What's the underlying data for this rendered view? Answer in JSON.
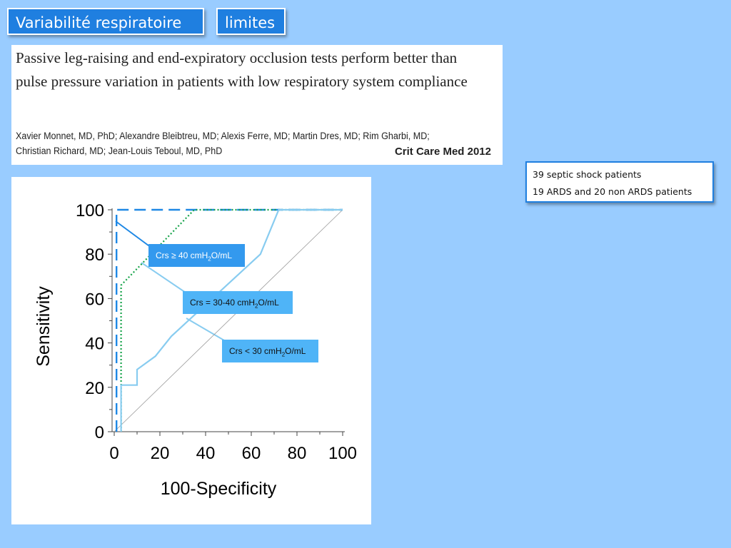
{
  "tabs": {
    "tab1": "Variabilité respiratoire",
    "tab2": "limites"
  },
  "paper": {
    "title": "Passive leg-raising and end-expiratory occlusion tests perform better than pulse pressure variation in patients with low respiratory system compliance",
    "authors": "Xavier Monnet, MD, PhD; Alexandre Bleibtreu, MD; Alexis Ferre, MD; Martin Dres, MD; Rim Gharbi, MD; Christian Richard, MD; Jean-Louis Teboul, MD, PhD",
    "journal": "Crit Care Med 2012"
  },
  "info": {
    "line1": "39 septic shock patients",
    "line2": "19 ARDS and 20 non ARDS patients"
  },
  "labels": {
    "a_pre": "Crs ≥ 40 cmH",
    "b_pre": "Crs = 30-40 cmH",
    "c_pre": "Crs < 30 cmH",
    "sub": "2",
    "post": "O/mL"
  },
  "colors": {
    "background": "#99ccff",
    "tag": "#1f7fe0",
    "curve_high": "#1e88e5",
    "curve_mid": "#16a34a",
    "curve_low": "#88ccf0",
    "callout_dark": "#3399ee",
    "callout_light": "#4fb4f7"
  },
  "chart_data": {
    "type": "line",
    "xlabel": "100-Specificity",
    "ylabel": "Sensitivity",
    "xlim": [
      0,
      100
    ],
    "ylim": [
      0,
      100
    ],
    "xticks": [
      0,
      20,
      40,
      60,
      80,
      100
    ],
    "yticks": [
      0,
      20,
      40,
      60,
      80,
      100
    ],
    "reference_line": [
      [
        0,
        0
      ],
      [
        100,
        100
      ]
    ],
    "series": [
      {
        "style": "dashed",
        "color": "#1e88e5",
        "x": [
          1,
          1,
          100
        ],
        "y": [
          0,
          100,
          100
        ]
      },
      {
        "style": "dotted",
        "color": "#16a34a",
        "x": [
          3,
          3,
          35,
          100
        ],
        "y": [
          0,
          66,
          100,
          100
        ]
      },
      {
        "style": "solid",
        "color": "#88ccf0",
        "x": [
          3,
          3,
          10,
          10,
          18,
          25,
          64,
          72,
          100
        ],
        "y": [
          0,
          21,
          21,
          28,
          34,
          43,
          80,
          100,
          100
        ]
      }
    ]
  }
}
